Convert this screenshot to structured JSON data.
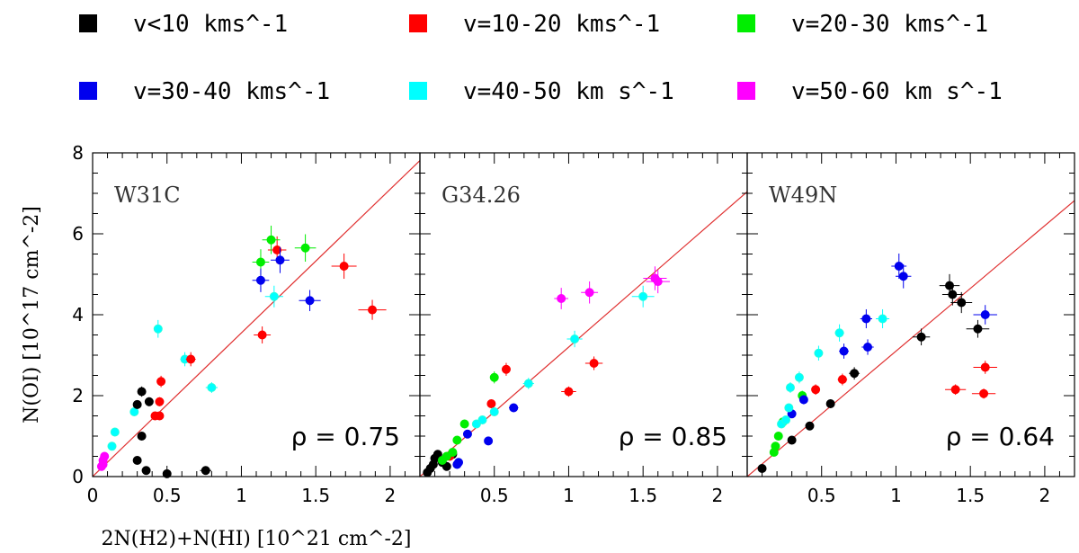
{
  "chart_data": {
    "type": "scatter",
    "xlabel": "2N(H2)+N(HI) [10^21 cm^-2]",
    "ylabel": "N(OI) [10^17 cm^-2]",
    "xlim": [
      0,
      2.2
    ],
    "ylim": [
      0,
      8
    ],
    "x_ticks": [
      "0",
      "0.5",
      "1",
      "1.5",
      "2"
    ],
    "y_ticks": [
      "0",
      "2",
      "4",
      "6",
      "8"
    ],
    "legend": [
      {
        "name": "v<10 kms^-1",
        "color": "#000000"
      },
      {
        "name": "v=10-20 kms^-1",
        "color": "#ff0000"
      },
      {
        "name": "v=20-30 kms^-1",
        "color": "#00ee00"
      },
      {
        "name": "v=30-40 kms^-1",
        "color": "#0000ee"
      },
      {
        "name": "v=40-50 km s^-1",
        "color": "#00ffff"
      },
      {
        "name": "v=50-60 km s^-1",
        "color": "#ff00ff"
      }
    ],
    "panels": [
      {
        "name": "W31C",
        "rho": "ρ = 0.75",
        "fit_slope": 3.55,
        "points": [
          {
            "x": 0.07,
            "y": 0.3,
            "c": 5
          },
          {
            "x": 0.07,
            "y": 0.4,
            "c": 5
          },
          {
            "x": 0.08,
            "y": 0.5,
            "c": 5
          },
          {
            "x": 0.06,
            "y": 0.25,
            "c": 5
          },
          {
            "x": 0.13,
            "y": 0.75,
            "c": 4
          },
          {
            "x": 0.15,
            "y": 1.1,
            "c": 4
          },
          {
            "x": 0.28,
            "y": 1.6,
            "c": 4
          },
          {
            "x": 0.44,
            "y": 3.65,
            "c": 4
          },
          {
            "x": 0.62,
            "y": 2.9,
            "c": 4
          },
          {
            "x": 0.8,
            "y": 2.2,
            "c": 4
          },
          {
            "x": 1.22,
            "y": 4.45,
            "c": 4
          },
          {
            "x": 0.3,
            "y": 1.78,
            "c": 0
          },
          {
            "x": 0.33,
            "y": 2.1,
            "c": 0
          },
          {
            "x": 0.38,
            "y": 1.85,
            "c": 0
          },
          {
            "x": 0.33,
            "y": 1.0,
            "c": 0
          },
          {
            "x": 0.3,
            "y": 0.4,
            "c": 0
          },
          {
            "x": 0.36,
            "y": 0.15,
            "c": 0
          },
          {
            "x": 0.5,
            "y": 0.07,
            "c": 0
          },
          {
            "x": 0.76,
            "y": 0.15,
            "c": 0
          },
          {
            "x": 0.42,
            "y": 1.5,
            "c": 1
          },
          {
            "x": 0.45,
            "y": 1.5,
            "c": 1
          },
          {
            "x": 0.45,
            "y": 1.85,
            "c": 1
          },
          {
            "x": 0.46,
            "y": 2.35,
            "c": 1
          },
          {
            "x": 0.66,
            "y": 2.9,
            "c": 1
          },
          {
            "x": 1.14,
            "y": 3.5,
            "c": 1
          },
          {
            "x": 1.24,
            "y": 5.6,
            "c": 1
          },
          {
            "x": 1.69,
            "y": 5.2,
            "c": 1
          },
          {
            "x": 1.88,
            "y": 4.12,
            "c": 1
          },
          {
            "x": 1.13,
            "y": 5.3,
            "c": 2
          },
          {
            "x": 1.2,
            "y": 5.85,
            "c": 2
          },
          {
            "x": 1.43,
            "y": 5.65,
            "c": 2
          },
          {
            "x": 1.13,
            "y": 4.85,
            "c": 3
          },
          {
            "x": 1.26,
            "y": 5.35,
            "c": 3
          },
          {
            "x": 1.46,
            "y": 4.35,
            "c": 3
          }
        ]
      },
      {
        "name": "G34.26",
        "rho": "ρ = 0.85",
        "fit_slope": 3.2,
        "points": [
          {
            "x": 0.05,
            "y": 0.1,
            "c": 0
          },
          {
            "x": 0.07,
            "y": 0.2,
            "c": 0
          },
          {
            "x": 0.09,
            "y": 0.3,
            "c": 0
          },
          {
            "x": 0.1,
            "y": 0.45,
            "c": 0
          },
          {
            "x": 0.12,
            "y": 0.55,
            "c": 0
          },
          {
            "x": 0.15,
            "y": 0.35,
            "c": 0
          },
          {
            "x": 0.18,
            "y": 0.25,
            "c": 0
          },
          {
            "x": 0.22,
            "y": 0.55,
            "c": 0
          },
          {
            "x": 0.2,
            "y": 0.5,
            "c": 1
          },
          {
            "x": 0.48,
            "y": 1.8,
            "c": 1
          },
          {
            "x": 0.58,
            "y": 2.65,
            "c": 1
          },
          {
            "x": 1.0,
            "y": 2.1,
            "c": 1
          },
          {
            "x": 1.17,
            "y": 2.8,
            "c": 1
          },
          {
            "x": 0.15,
            "y": 0.4,
            "c": 2
          },
          {
            "x": 0.18,
            "y": 0.5,
            "c": 2
          },
          {
            "x": 0.22,
            "y": 0.6,
            "c": 2
          },
          {
            "x": 0.25,
            "y": 0.9,
            "c": 2
          },
          {
            "x": 0.3,
            "y": 1.3,
            "c": 2
          },
          {
            "x": 0.5,
            "y": 2.45,
            "c": 2
          },
          {
            "x": 0.25,
            "y": 0.3,
            "c": 3
          },
          {
            "x": 0.26,
            "y": 0.35,
            "c": 3
          },
          {
            "x": 0.32,
            "y": 1.05,
            "c": 3
          },
          {
            "x": 0.46,
            "y": 0.88,
            "c": 3
          },
          {
            "x": 0.63,
            "y": 1.7,
            "c": 3
          },
          {
            "x": 0.38,
            "y": 1.3,
            "c": 4
          },
          {
            "x": 0.42,
            "y": 1.4,
            "c": 4
          },
          {
            "x": 0.5,
            "y": 1.6,
            "c": 4
          },
          {
            "x": 0.73,
            "y": 2.3,
            "c": 4
          },
          {
            "x": 1.04,
            "y": 3.4,
            "c": 4
          },
          {
            "x": 1.5,
            "y": 4.45,
            "c": 4
          },
          {
            "x": 0.95,
            "y": 4.4,
            "c": 5
          },
          {
            "x": 1.14,
            "y": 4.55,
            "c": 5
          },
          {
            "x": 1.58,
            "y": 4.9,
            "c": 5
          },
          {
            "x": 1.6,
            "y": 4.82,
            "c": 5
          }
        ]
      },
      {
        "name": "W49N",
        "rho": "ρ = 0.64",
        "fit_slope": 3.1,
        "points": [
          {
            "x": 0.1,
            "y": 0.2,
            "c": 0
          },
          {
            "x": 0.3,
            "y": 0.9,
            "c": 0
          },
          {
            "x": 0.42,
            "y": 1.25,
            "c": 0
          },
          {
            "x": 0.56,
            "y": 1.8,
            "c": 0
          },
          {
            "x": 0.72,
            "y": 2.55,
            "c": 0
          },
          {
            "x": 1.17,
            "y": 3.45,
            "c": 0
          },
          {
            "x": 1.36,
            "y": 4.72,
            "c": 0
          },
          {
            "x": 1.38,
            "y": 4.5,
            "c": 0
          },
          {
            "x": 1.44,
            "y": 4.3,
            "c": 0
          },
          {
            "x": 1.55,
            "y": 3.65,
            "c": 0
          },
          {
            "x": 0.46,
            "y": 2.15,
            "c": 1
          },
          {
            "x": 0.64,
            "y": 2.4,
            "c": 1
          },
          {
            "x": 1.4,
            "y": 2.15,
            "c": 1
          },
          {
            "x": 1.59,
            "y": 2.05,
            "c": 1
          },
          {
            "x": 1.6,
            "y": 2.7,
            "c": 1
          },
          {
            "x": 0.18,
            "y": 0.6,
            "c": 2
          },
          {
            "x": 0.19,
            "y": 0.75,
            "c": 2
          },
          {
            "x": 0.21,
            "y": 1.0,
            "c": 2
          },
          {
            "x": 0.24,
            "y": 1.35,
            "c": 2
          },
          {
            "x": 0.37,
            "y": 2.0,
            "c": 2
          },
          {
            "x": 0.3,
            "y": 1.55,
            "c": 3
          },
          {
            "x": 0.38,
            "y": 1.9,
            "c": 3
          },
          {
            "x": 0.65,
            "y": 3.1,
            "c": 3
          },
          {
            "x": 0.8,
            "y": 3.9,
            "c": 3
          },
          {
            "x": 0.81,
            "y": 3.2,
            "c": 3
          },
          {
            "x": 1.02,
            "y": 5.2,
            "c": 3
          },
          {
            "x": 1.05,
            "y": 4.95,
            "c": 3
          },
          {
            "x": 1.6,
            "y": 4.0,
            "c": 3
          },
          {
            "x": 0.23,
            "y": 1.3,
            "c": 4
          },
          {
            "x": 0.26,
            "y": 1.4,
            "c": 4
          },
          {
            "x": 0.28,
            "y": 1.7,
            "c": 4
          },
          {
            "x": 0.29,
            "y": 2.2,
            "c": 4
          },
          {
            "x": 0.35,
            "y": 2.45,
            "c": 4
          },
          {
            "x": 0.48,
            "y": 3.05,
            "c": 4
          },
          {
            "x": 0.62,
            "y": 3.55,
            "c": 4
          },
          {
            "x": 0.91,
            "y": 3.9,
            "c": 4
          }
        ]
      }
    ]
  }
}
